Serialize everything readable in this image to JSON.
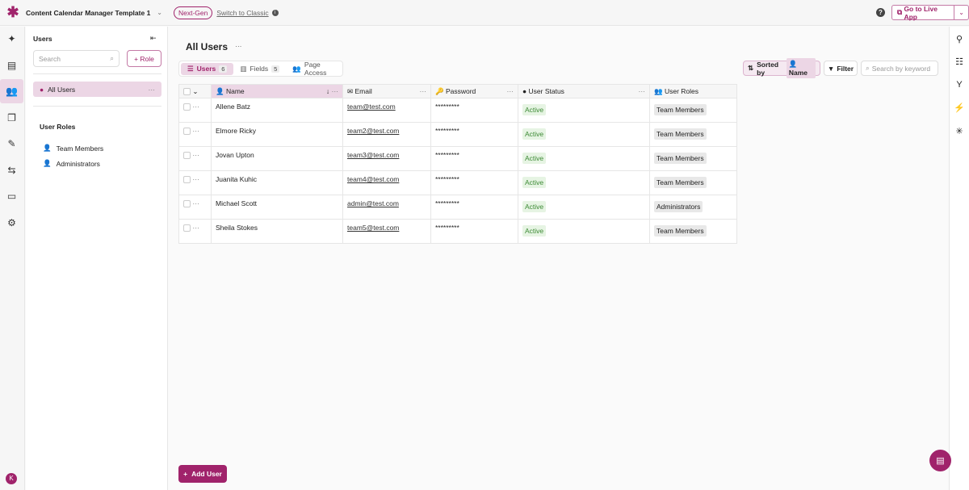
{
  "topbar": {
    "app_title": "Content Calendar Manager Template 1",
    "badge": "Next-Gen",
    "switch_label": "Switch to Classic",
    "help": "?",
    "live_label": "Go to Live App"
  },
  "rail": {
    "icons": [
      "sparkle-icon",
      "table-icon",
      "users-icon",
      "pages-icon",
      "brush-icon",
      "flow-icon",
      "card-icon",
      "gear-icon"
    ],
    "avatar": "K"
  },
  "panel": {
    "title": "Users",
    "search_placeholder": "Search",
    "role_button": "+ Role",
    "all_users": "All Users",
    "roles_heading": "User Roles",
    "roles": [
      "Team Members",
      "Administrators"
    ]
  },
  "main": {
    "title": "All Users",
    "tabs": [
      {
        "label": "Users",
        "count": "6"
      },
      {
        "label": "Fields",
        "count": "5"
      },
      {
        "label": "Page Access"
      }
    ],
    "sorted_label": "Sorted by",
    "sorted_field": "Name",
    "filter_label": "Filter",
    "search_placeholder": "Search by keyword",
    "columns": [
      "Name",
      "Email",
      "Password",
      "User Status",
      "User Roles"
    ],
    "rows": [
      {
        "name": "Allene Batz",
        "email": "team@test.com",
        "password": "*********",
        "status": "Active",
        "role": "Team Members"
      },
      {
        "name": "Elmore Ricky",
        "email": "team2@test.com",
        "password": "*********",
        "status": "Active",
        "role": "Team Members"
      },
      {
        "name": "Jovan Upton",
        "email": "team3@test.com",
        "password": "*********",
        "status": "Active",
        "role": "Team Members"
      },
      {
        "name": "Juanita Kuhic",
        "email": "team4@test.com",
        "password": "*********",
        "status": "Active",
        "role": "Team Members"
      },
      {
        "name": "Michael Scott",
        "email": "admin@test.com",
        "password": "*********",
        "status": "Active",
        "role": "Administrators"
      },
      {
        "name": "Sheila Stokes",
        "email": "team5@test.com",
        "password": "*********",
        "status": "Active",
        "role": "Team Members"
      }
    ],
    "add_user": "Add User"
  },
  "colors": {
    "accent": "#a0236b",
    "accent_light": "#ecd6e5",
    "active_bg": "#e6f4e3",
    "active_text": "#3d8a35"
  }
}
